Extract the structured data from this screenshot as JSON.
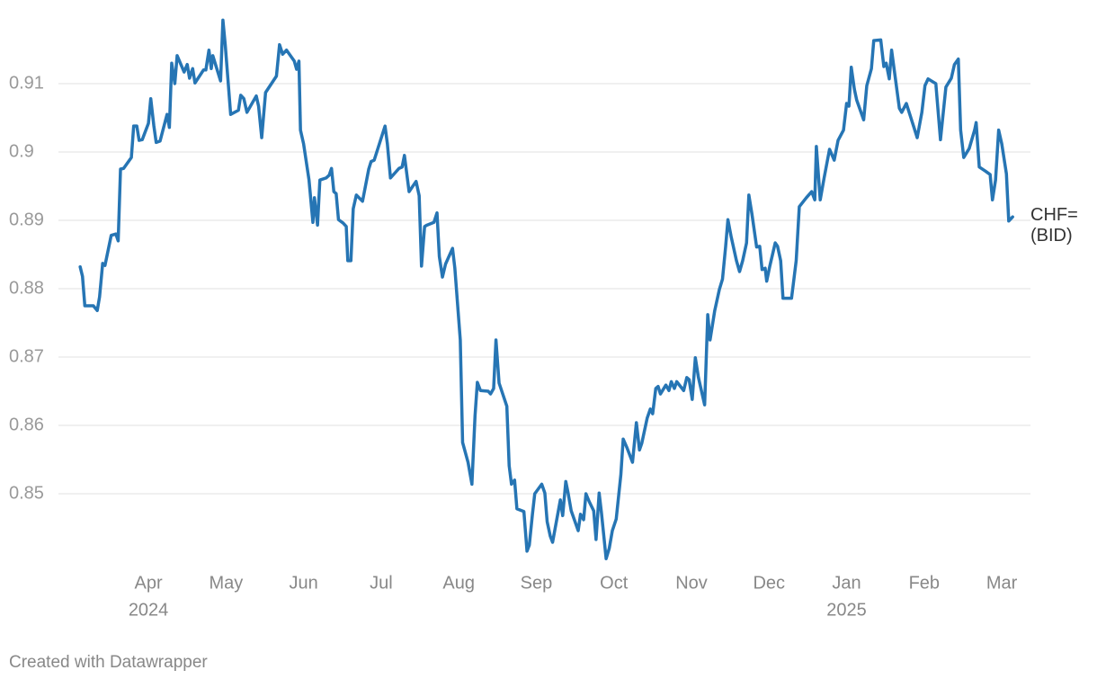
{
  "chart_data": {
    "type": "line",
    "x": [
      -0.88,
      -0.85,
      -0.82,
      -0.71,
      -0.66,
      -0.63,
      -0.59,
      -0.56,
      -0.48,
      -0.42,
      -0.39,
      -0.36,
      -0.32,
      -0.22,
      -0.19,
      -0.15,
      -0.12,
      -0.08,
      0.0,
      0.03,
      0.07,
      0.1,
      0.15,
      0.21,
      0.24,
      0.27,
      0.3,
      0.34,
      0.37,
      0.46,
      0.5,
      0.53,
      0.57,
      0.6,
      0.71,
      0.74,
      0.78,
      0.81,
      0.83,
      0.93,
      0.96,
      0.99,
      1.06,
      1.16,
      1.19,
      1.23,
      1.27,
      1.39,
      1.42,
      1.46,
      1.51,
      1.65,
      1.69,
      1.73,
      1.78,
      1.88,
      1.91,
      1.94,
      1.96,
      2.0,
      2.07,
      2.12,
      2.14,
      2.18,
      2.21,
      2.29,
      2.33,
      2.36,
      2.39,
      2.42,
      2.45,
      2.51,
      2.55,
      2.57,
      2.61,
      2.64,
      2.68,
      2.76,
      2.84,
      2.87,
      2.91,
      3.05,
      3.08,
      3.12,
      3.23,
      3.27,
      3.3,
      3.36,
      3.45,
      3.49,
      3.52,
      3.56,
      3.59,
      3.68,
      3.72,
      3.75,
      3.79,
      3.83,
      3.92,
      3.95,
      4.02,
      4.05,
      4.12,
      4.17,
      4.21,
      4.24,
      4.28,
      4.38,
      4.41,
      4.45,
      4.48,
      4.52,
      4.62,
      4.65,
      4.68,
      4.72,
      4.75,
      4.84,
      4.88,
      4.91,
      4.95,
      4.98,
      5.07,
      5.11,
      5.14,
      5.18,
      5.21,
      5.31,
      5.34,
      5.38,
      5.41,
      5.45,
      5.54,
      5.57,
      5.61,
      5.64,
      5.68,
      5.74,
      5.77,
      5.81,
      5.84,
      5.9,
      5.94,
      5.98,
      6.03,
      6.09,
      6.12,
      6.17,
      6.24,
      6.29,
      6.33,
      6.36,
      6.43,
      6.47,
      6.5,
      6.54,
      6.57,
      6.6,
      6.67,
      6.71,
      6.74,
      6.78,
      6.81,
      6.9,
      6.94,
      6.97,
      7.01,
      7.05,
      7.09,
      7.17,
      7.21,
      7.24,
      7.3,
      7.36,
      7.4,
      7.44,
      7.47,
      7.51,
      7.58,
      7.62,
      7.66,
      7.71,
      7.74,
      7.78,
      7.84,
      7.88,
      7.91,
      7.95,
      7.97,
      8.01,
      8.08,
      8.11,
      8.15,
      8.18,
      8.29,
      8.31,
      8.35,
      8.39,
      8.48,
      8.55,
      8.59,
      8.61,
      8.66,
      8.71,
      8.78,
      8.84,
      8.89,
      8.96,
      9.0,
      9.03,
      9.06,
      9.1,
      9.13,
      9.22,
      9.26,
      9.32,
      9.35,
      9.44,
      9.48,
      9.51,
      9.55,
      9.58,
      9.68,
      9.71,
      9.77,
      9.91,
      9.97,
      10.01,
      10.05,
      10.15,
      10.21,
      10.28,
      10.35,
      10.39,
      10.44,
      10.47,
      10.51,
      10.58,
      10.65,
      10.67,
      10.71,
      10.79,
      10.85,
      10.88,
      10.92,
      10.96,
      11.0,
      11.06,
      11.09,
      11.14
    ],
    "series": [
      {
        "name": "CHF= (BID)",
        "color": "#2675b4",
        "values": [
          0.8832,
          0.8818,
          0.8775,
          0.8775,
          0.8768,
          0.8788,
          0.8837,
          0.8834,
          0.8878,
          0.888,
          0.887,
          0.8975,
          0.8976,
          0.8992,
          0.9038,
          0.9038,
          0.9017,
          0.9018,
          0.9042,
          0.9078,
          0.9038,
          0.9014,
          0.9016,
          0.9042,
          0.9055,
          0.9036,
          0.913,
          0.91,
          0.9141,
          0.9117,
          0.9128,
          0.9108,
          0.9122,
          0.9101,
          0.912,
          0.912,
          0.9149,
          0.9122,
          0.9141,
          0.9104,
          0.9193,
          0.9157,
          0.9055,
          0.9061,
          0.9083,
          0.9078,
          0.9058,
          0.9082,
          0.9067,
          0.9021,
          0.9087,
          0.9111,
          0.9157,
          0.9143,
          0.9149,
          0.9133,
          0.9121,
          0.9133,
          0.9032,
          0.9012,
          0.8959,
          0.8897,
          0.8933,
          0.8893,
          0.8959,
          0.8962,
          0.8966,
          0.8976,
          0.8942,
          0.8939,
          0.8901,
          0.8896,
          0.8891,
          0.8841,
          0.8841,
          0.8917,
          0.8937,
          0.8928,
          0.8975,
          0.8986,
          0.8988,
          0.9038,
          0.9012,
          0.8962,
          0.8976,
          0.8978,
          0.8995,
          0.8942,
          0.8957,
          0.8936,
          0.8833,
          0.8891,
          0.8893,
          0.8897,
          0.8911,
          0.8847,
          0.8817,
          0.8836,
          0.8859,
          0.883,
          0.8725,
          0.8575,
          0.8546,
          0.8514,
          0.8614,
          0.8663,
          0.8651,
          0.865,
          0.8646,
          0.8654,
          0.8725,
          0.8662,
          0.8628,
          0.8541,
          0.8514,
          0.852,
          0.8478,
          0.8474,
          0.8416,
          0.8425,
          0.847,
          0.85,
          0.8514,
          0.8501,
          0.8459,
          0.8438,
          0.8429,
          0.8491,
          0.8468,
          0.8518,
          0.8501,
          0.8475,
          0.8446,
          0.847,
          0.8462,
          0.85,
          0.8489,
          0.8475,
          0.8433,
          0.8501,
          0.8472,
          0.8405,
          0.842,
          0.8446,
          0.8463,
          0.8528,
          0.858,
          0.8567,
          0.8546,
          0.8604,
          0.8564,
          0.8574,
          0.8611,
          0.8624,
          0.8617,
          0.8654,
          0.8657,
          0.8646,
          0.8659,
          0.8651,
          0.8664,
          0.8654,
          0.8664,
          0.8651,
          0.867,
          0.8667,
          0.8638,
          0.8699,
          0.867,
          0.863,
          0.8762,
          0.8725,
          0.8768,
          0.8799,
          0.8814,
          0.8861,
          0.8901,
          0.8877,
          0.8841,
          0.8825,
          0.8841,
          0.8867,
          0.8937,
          0.8909,
          0.8861,
          0.8862,
          0.8828,
          0.883,
          0.8811,
          0.8833,
          0.8867,
          0.8862,
          0.8841,
          0.8786,
          0.8786,
          0.8804,
          0.8841,
          0.892,
          0.8933,
          0.8942,
          0.893,
          0.9008,
          0.893,
          0.8962,
          0.9004,
          0.8988,
          0.9017,
          0.9032,
          0.9071,
          0.9067,
          0.9124,
          0.9092,
          0.9076,
          0.9047,
          0.9097,
          0.9122,
          0.9163,
          0.9164,
          0.9125,
          0.913,
          0.9107,
          0.9149,
          0.9064,
          0.9058,
          0.9071,
          0.9021,
          0.9058,
          0.9097,
          0.9107,
          0.91,
          0.9018,
          0.9095,
          0.9108,
          0.9128,
          0.9136,
          0.9032,
          0.8992,
          0.9005,
          0.9032,
          0.9043,
          0.8978,
          0.8972,
          0.8967,
          0.893,
          0.8959,
          0.9032,
          0.9012,
          0.8968,
          0.8899,
          0.8905
        ]
      }
    ],
    "xlim": [
      -1.16,
      11.37
    ],
    "xticks": [
      {
        "value": 0,
        "label": "Apr"
      },
      {
        "value": 1,
        "label": "May"
      },
      {
        "value": 2,
        "label": "Jun"
      },
      {
        "value": 3,
        "label": "Jul"
      },
      {
        "value": 4,
        "label": "Aug"
      },
      {
        "value": 5,
        "label": "Sep"
      },
      {
        "value": 6,
        "label": "Oct"
      },
      {
        "value": 7,
        "label": "Nov"
      },
      {
        "value": 8,
        "label": "Dec"
      },
      {
        "value": 9,
        "label": "Jan"
      },
      {
        "value": 10,
        "label": "Feb"
      },
      {
        "value": 11,
        "label": "Mar"
      }
    ],
    "year_labels": [
      {
        "value": 0,
        "label": "2024"
      },
      {
        "value": 9,
        "label": "2025"
      }
    ],
    "ylim": [
      0.84,
      0.92
    ],
    "yticks": [
      0.85,
      0.86,
      0.87,
      0.88,
      0.89,
      0.9,
      0.91
    ],
    "grid": true,
    "credit": "Created with Datawrapper"
  }
}
